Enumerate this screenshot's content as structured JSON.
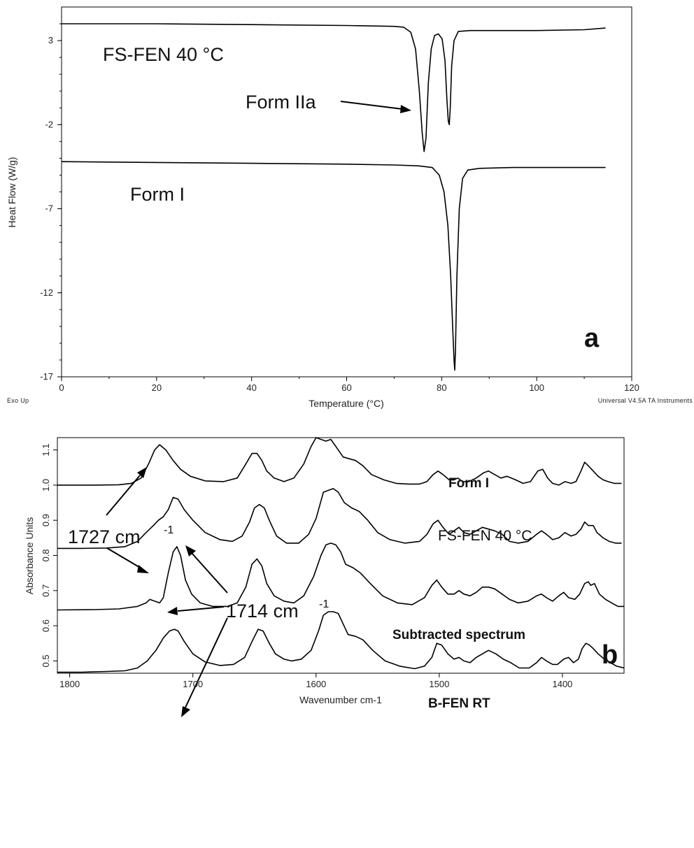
{
  "chart_data": [
    {
      "panel": "a",
      "type": "line",
      "xlabel": "Temperature (°C)",
      "ylabel": "Heat Flow (W/g)",
      "xlim": [
        0,
        120
      ],
      "ylim": [
        -17,
        5
      ],
      "xticks": [
        "0",
        "20",
        "40",
        "60",
        "80",
        "100",
        "120"
      ],
      "yticks": [
        "3",
        "-2",
        "-7",
        "-12",
        "-17"
      ],
      "corner_left": "Exo Up",
      "corner_right": "Universal V4.5A TA Instruments",
      "grid": false,
      "series": [
        {
          "name": "FS-FEN 40 °C",
          "x": [
            0,
            20,
            40,
            60,
            70,
            72,
            73.5,
            74.5,
            75.3,
            75.9,
            76.3,
            76.7,
            77.2,
            77.8,
            78.5,
            79.3,
            80.1,
            80.7,
            81.1,
            81.4,
            81.6,
            81.8,
            82.1,
            82.6,
            83.5,
            86,
            90,
            100,
            110,
            114.5
          ],
          "y": [
            4.0,
            4.0,
            3.95,
            3.9,
            3.85,
            3.8,
            3.5,
            2.5,
            0.0,
            -2.5,
            -3.6,
            -2.8,
            0.5,
            2.5,
            3.3,
            3.4,
            3.1,
            1.8,
            -0.5,
            -1.8,
            -2.0,
            -1.0,
            1.5,
            3.0,
            3.55,
            3.6,
            3.6,
            3.6,
            3.65,
            3.75
          ]
        },
        {
          "name": "Form I",
          "x": [
            0,
            20,
            40,
            60,
            70,
            75,
            78,
            79.5,
            80.5,
            81.3,
            81.9,
            82.3,
            82.6,
            82.75,
            82.9,
            83.2,
            83.7,
            84.4,
            85.5,
            88,
            95,
            105,
            114.5
          ],
          "y": [
            -4.2,
            -4.25,
            -4.3,
            -4.35,
            -4.4,
            -4.45,
            -4.55,
            -5.0,
            -6.0,
            -8.0,
            -11.0,
            -14.0,
            -16.0,
            -16.6,
            -15.5,
            -11.0,
            -7.0,
            -5.2,
            -4.7,
            -4.6,
            -4.55,
            -4.55,
            -4.55
          ]
        }
      ],
      "annotations": {
        "curve_top_label": "FS-FEN 40 °C",
        "peak_label": "Form IIa",
        "curve_bottom_label": "Form I",
        "panel_letter": "a"
      }
    },
    {
      "panel": "b",
      "type": "line",
      "xlabel": "Wavenumber cm-1",
      "ylabel": "Absorbance Units",
      "xlim": [
        1810,
        1350
      ],
      "ylim": [
        0.465,
        1.135
      ],
      "xticks": [
        "1800",
        "1700",
        "1600",
        "1500",
        "1400"
      ],
      "yticks": [
        "0.5",
        "0.6",
        "0.7",
        "0.8",
        "0.9",
        "1.0",
        "1.1"
      ],
      "grid": false,
      "series": [
        {
          "name": "Form I",
          "x": [
            1810,
            1780,
            1760,
            1750,
            1742,
            1736,
            1731,
            1727,
            1722,
            1716,
            1710,
            1702,
            1690,
            1675,
            1664,
            1657,
            1652,
            1648,
            1644,
            1640,
            1634,
            1626,
            1618,
            1610,
            1604,
            1600,
            1596,
            1592,
            1588,
            1584,
            1578,
            1573,
            1568,
            1562,
            1555,
            1545,
            1535,
            1525,
            1516,
            1510,
            1505,
            1501,
            1497,
            1492,
            1488,
            1485,
            1481,
            1476,
            1470,
            1464,
            1460,
            1455,
            1450,
            1445,
            1438,
            1432,
            1426,
            1420,
            1416,
            1412,
            1408,
            1403,
            1398,
            1393,
            1389,
            1385,
            1382,
            1379,
            1375,
            1371,
            1367,
            1363,
            1358,
            1352
          ],
          "y": [
            1.0,
            1.0,
            1.001,
            1.005,
            1.02,
            1.06,
            1.1,
            1.115,
            1.1,
            1.07,
            1.045,
            1.025,
            1.012,
            1.01,
            1.02,
            1.06,
            1.09,
            1.09,
            1.07,
            1.04,
            1.02,
            1.01,
            1.02,
            1.06,
            1.11,
            1.135,
            1.13,
            1.125,
            1.13,
            1.11,
            1.08,
            1.075,
            1.07,
            1.055,
            1.03,
            1.015,
            1.005,
            1.003,
            1.003,
            1.01,
            1.03,
            1.04,
            1.03,
            1.015,
            1.015,
            1.02,
            1.01,
            1.01,
            1.02,
            1.035,
            1.04,
            1.03,
            1.02,
            1.025,
            1.015,
            1.005,
            1.01,
            1.04,
            1.045,
            1.02,
            1.005,
            1.0,
            1.01,
            1.005,
            1.01,
            1.04,
            1.065,
            1.055,
            1.04,
            1.025,
            1.015,
            1.01,
            1.005,
            1.005
          ]
        },
        {
          "name": "FS-FEN 40 °C",
          "x": [
            1810,
            1790,
            1770,
            1755,
            1745,
            1738,
            1732,
            1728,
            1724,
            1720,
            1716,
            1712,
            1707,
            1700,
            1690,
            1678,
            1668,
            1660,
            1654,
            1650,
            1646,
            1642,
            1638,
            1632,
            1624,
            1614,
            1606,
            1600,
            1594,
            1590,
            1586,
            1582,
            1577,
            1571,
            1565,
            1558,
            1550,
            1540,
            1528,
            1516,
            1510,
            1505,
            1501,
            1497,
            1492,
            1488,
            1484,
            1480,
            1475,
            1470,
            1465,
            1460,
            1455,
            1449,
            1443,
            1436,
            1428,
            1421,
            1417,
            1413,
            1408,
            1403,
            1398,
            1393,
            1389,
            1385,
            1382,
            1379,
            1375,
            1372,
            1367,
            1362,
            1357,
            1352
          ],
          "y": [
            0.82,
            0.82,
            0.821,
            0.825,
            0.84,
            0.865,
            0.885,
            0.9,
            0.91,
            0.93,
            0.965,
            0.96,
            0.93,
            0.9,
            0.865,
            0.845,
            0.84,
            0.855,
            0.895,
            0.935,
            0.945,
            0.935,
            0.9,
            0.855,
            0.835,
            0.835,
            0.86,
            0.905,
            0.98,
            0.985,
            0.99,
            0.98,
            0.95,
            0.935,
            0.925,
            0.9,
            0.865,
            0.845,
            0.835,
            0.84,
            0.86,
            0.89,
            0.9,
            0.88,
            0.86,
            0.87,
            0.88,
            0.865,
            0.86,
            0.87,
            0.88,
            0.875,
            0.87,
            0.86,
            0.84,
            0.835,
            0.84,
            0.86,
            0.87,
            0.86,
            0.845,
            0.85,
            0.865,
            0.855,
            0.86,
            0.875,
            0.895,
            0.885,
            0.885,
            0.865,
            0.85,
            0.84,
            0.835,
            0.835
          ]
        },
        {
          "name": "Subtracted spectrum",
          "x": [
            1810,
            1780,
            1760,
            1745,
            1738,
            1735,
            1731,
            1727,
            1724,
            1720,
            1716,
            1713,
            1710,
            1706,
            1701,
            1694,
            1684,
            1672,
            1664,
            1657,
            1652,
            1648,
            1644,
            1640,
            1634,
            1626,
            1618,
            1610,
            1602,
            1596,
            1592,
            1588,
            1584,
            1580,
            1576,
            1570,
            1564,
            1556,
            1546,
            1534,
            1522,
            1512,
            1506,
            1502,
            1498,
            1493,
            1488,
            1484,
            1480,
            1475,
            1470,
            1465,
            1460,
            1455,
            1449,
            1443,
            1436,
            1428,
            1421,
            1417,
            1413,
            1408,
            1403,
            1399,
            1395,
            1390,
            1386,
            1382,
            1379,
            1377,
            1374,
            1370,
            1365,
            1360,
            1355,
            1350
          ],
          "y": [
            0.645,
            0.646,
            0.648,
            0.655,
            0.665,
            0.675,
            0.67,
            0.665,
            0.68,
            0.75,
            0.81,
            0.825,
            0.8,
            0.73,
            0.69,
            0.665,
            0.655,
            0.655,
            0.665,
            0.71,
            0.775,
            0.79,
            0.77,
            0.72,
            0.685,
            0.67,
            0.665,
            0.685,
            0.74,
            0.8,
            0.83,
            0.835,
            0.83,
            0.81,
            0.775,
            0.765,
            0.75,
            0.72,
            0.685,
            0.665,
            0.66,
            0.68,
            0.715,
            0.73,
            0.71,
            0.69,
            0.69,
            0.7,
            0.69,
            0.685,
            0.695,
            0.71,
            0.71,
            0.705,
            0.69,
            0.675,
            0.665,
            0.67,
            0.685,
            0.69,
            0.68,
            0.67,
            0.685,
            0.695,
            0.68,
            0.675,
            0.69,
            0.72,
            0.725,
            0.715,
            0.72,
            0.69,
            0.675,
            0.665,
            0.655,
            0.655
          ]
        },
        {
          "name": "B-FEN RT",
          "x": [
            1810,
            1790,
            1770,
            1755,
            1745,
            1737,
            1730,
            1724,
            1719,
            1715,
            1712,
            1707,
            1700,
            1690,
            1678,
            1667,
            1658,
            1652,
            1647,
            1643,
            1638,
            1633,
            1626,
            1620,
            1612,
            1604,
            1598,
            1594,
            1590,
            1586,
            1582,
            1578,
            1574,
            1568,
            1562,
            1554,
            1544,
            1532,
            1520,
            1512,
            1506,
            1502,
            1498,
            1493,
            1488,
            1484,
            1480,
            1475,
            1470,
            1465,
            1460,
            1454,
            1448,
            1442,
            1435,
            1427,
            1421,
            1417,
            1413,
            1408,
            1404,
            1399,
            1395,
            1391,
            1387,
            1384,
            1381,
            1378,
            1375,
            1371,
            1366,
            1361,
            1356,
            1350
          ],
          "y": [
            0.468,
            0.468,
            0.47,
            0.472,
            0.48,
            0.5,
            0.53,
            0.565,
            0.585,
            0.59,
            0.585,
            0.555,
            0.52,
            0.497,
            0.487,
            0.49,
            0.51,
            0.555,
            0.59,
            0.585,
            0.55,
            0.52,
            0.505,
            0.5,
            0.505,
            0.53,
            0.585,
            0.63,
            0.64,
            0.64,
            0.635,
            0.605,
            0.575,
            0.57,
            0.56,
            0.53,
            0.5,
            0.485,
            0.478,
            0.485,
            0.51,
            0.55,
            0.545,
            0.52,
            0.505,
            0.51,
            0.5,
            0.495,
            0.51,
            0.52,
            0.53,
            0.52,
            0.505,
            0.495,
            0.48,
            0.48,
            0.495,
            0.51,
            0.5,
            0.49,
            0.49,
            0.505,
            0.51,
            0.495,
            0.505,
            0.535,
            0.55,
            0.545,
            0.535,
            0.52,
            0.505,
            0.495,
            0.485,
            0.48
          ]
        }
      ],
      "annotations": {
        "label_1727": "1727 cm",
        "label_1714": "1714 cm",
        "superscript": "-1",
        "series_label_1": "Form I",
        "series_label_2": "FS-FEN 40 °C",
        "series_label_3": "Subtracted spectrum",
        "series_label_4": "B-FEN RT",
        "panel_letter": "b"
      }
    }
  ]
}
